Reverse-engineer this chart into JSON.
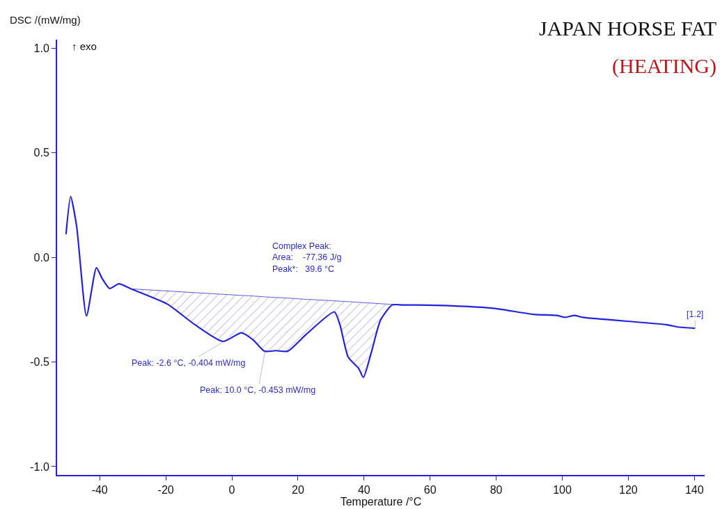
{
  "chart_data": {
    "type": "line",
    "title": "JAPAN HORSE FAT",
    "subtitle": "(HEATING)",
    "xlabel": "Temperature /°C",
    "ylabel": "DSC /(mW/mg)",
    "series": [
      {
        "color": "#2222dd",
        "x": [
          -50.2,
          -48.8,
          -47.0,
          -44.0,
          -41.0,
          -39.3,
          -37.0,
          -34.2,
          -30.5,
          -19.6,
          -11.2,
          -2.7,
          2.9,
          6.4,
          9.9,
          13.4,
          16.9,
          22.6,
          31.0,
          32.7,
          35.2,
          38.4,
          39.8,
          42.2,
          45.0,
          48.5,
          51.9,
          56.3,
          66.8,
          78.8,
          91.4,
          98.4,
          100.9,
          103.7,
          106.2,
          131.5,
          135.0,
          140.2
        ],
        "values": [
          0.11,
          0.29,
          0.15,
          -0.28,
          -0.05,
          -0.1,
          -0.149,
          -0.127,
          -0.151,
          -0.223,
          -0.322,
          -0.402,
          -0.361,
          -0.394,
          -0.449,
          -0.446,
          -0.449,
          -0.367,
          -0.261,
          -0.322,
          -0.477,
          -0.532,
          -0.574,
          -0.455,
          -0.3,
          -0.228,
          -0.228,
          -0.228,
          -0.232,
          -0.243,
          -0.273,
          -0.278,
          -0.287,
          -0.278,
          -0.287,
          -0.322,
          -0.333,
          -0.339
        ]
      },
      {
        "type": "line",
        "color": "#5555dd",
        "x": [
          -30.5,
          -19.6,
          -11.2,
          -2.7,
          2.9,
          6.4,
          9.9,
          13.4,
          16.9,
          22.6,
          31.0,
          32.7,
          35.2,
          38.4,
          39.8,
          42.2,
          45.0,
          48.5,
          51.9
        ],
        "values": [
          -0.151,
          -0.161,
          -0.169,
          -0.177,
          -0.182,
          -0.185,
          -0.189,
          -0.192,
          -0.195,
          -0.201,
          -0.208,
          -0.21,
          -0.212,
          -0.215,
          -0.217,
          -0.219,
          -0.222,
          -0.225,
          -0.228
        ],
        "upper": [
          -0.151,
          -0.161,
          -0.169,
          -0.177,
          -0.182,
          -0.185,
          -0.189,
          -0.192,
          -0.195,
          -0.201,
          -0.208,
          -0.21,
          -0.212,
          -0.215,
          -0.217,
          -0.219,
          -0.222,
          -0.225,
          -0.228
        ],
        "lower": [
          -0.151,
          -0.223,
          -0.322,
          -0.402,
          -0.361,
          -0.394,
          -0.449,
          -0.446,
          -0.449,
          -0.367,
          -0.261,
          -0.322,
          -0.477,
          -0.532,
          -0.574,
          -0.455,
          -0.3,
          -0.228,
          -0.228
        ]
      }
    ],
    "xlim": [
      -52.9,
      143.1
    ],
    "xticks": [
      -40,
      -20,
      0,
      20,
      40,
      60,
      80,
      100,
      120,
      140
    ],
    "ylim": [
      -1.04,
      1.04
    ],
    "yticks": [
      {
        "value": -1,
        "label": "-1.0"
      },
      -0.5,
      {
        "value": 0,
        "label": "0.0"
      },
      0.5,
      {
        "value": 1,
        "label": "1.0"
      }
    ],
    "annotations": [
      "↑ exo",
      "Complex Peak:\nArea:    -77.36 J/g\nPeak*:   39.6 °C",
      {
        "text": "Peak: -2.6 °C, -0.404 mW/mg",
        "x": -2.6,
        "y": -0.404
      },
      {
        "text": "Peak: 10.0 °C, -0.453 mW/mg",
        "x": 10.0,
        "y": -0.453
      },
      {
        "text": "[1.2]",
        "x": 140.2,
        "y": -0.339
      }
    ]
  }
}
